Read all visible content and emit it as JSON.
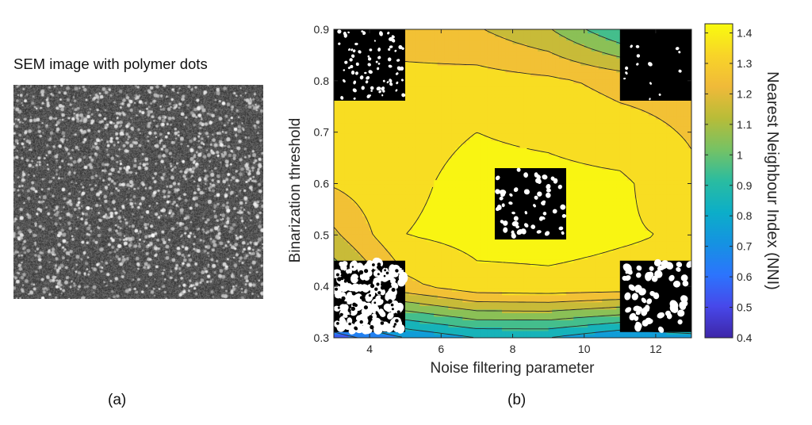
{
  "panel_a": {
    "title": "SEM image with polymer dots",
    "label": "(a)",
    "image_icon": "sem-micrograph-noise-dots"
  },
  "panel_b": {
    "label": "(b)"
  },
  "chart_data": {
    "type": "heatmap",
    "subtype": "filled-contour",
    "title": "",
    "xlabel": "Noise filtering parameter",
    "ylabel": "Binarization threshold",
    "colorbar_label": "Nearest Neighbour Index (NNI)",
    "xlim": [
      3,
      13
    ],
    "ylim": [
      0.3,
      0.9
    ],
    "clim": [
      0.4,
      1.43
    ],
    "x_ticks": [
      4,
      6,
      8,
      10,
      12
    ],
    "y_ticks": [
      0.3,
      0.4,
      0.5,
      0.6,
      0.7,
      0.8,
      0.9
    ],
    "colorbar_ticks": [
      0.4,
      0.5,
      0.6,
      0.7,
      0.8,
      0.9,
      1,
      1.1,
      1.2,
      1.3,
      1.4
    ],
    "colormap": "parula",
    "grid": false,
    "x": [
      3,
      5,
      7,
      9,
      11,
      13
    ],
    "y": [
      0.3,
      0.4,
      0.5,
      0.6,
      0.7,
      0.8,
      0.9
    ],
    "z": [
      [
        0.55,
        0.7,
        0.8,
        0.8,
        0.7,
        0.75
      ],
      [
        1.0,
        1.27,
        1.37,
        1.38,
        1.37,
        1.37
      ],
      [
        1.18,
        1.4,
        1.43,
        1.43,
        1.41,
        1.39
      ],
      [
        1.31,
        1.38,
        1.43,
        1.43,
        1.42,
        1.32
      ],
      [
        1.35,
        1.37,
        1.4,
        1.38,
        1.34,
        1.29
      ],
      [
        1.28,
        1.33,
        1.34,
        1.32,
        1.27,
        1.26
      ],
      [
        1.2,
        1.25,
        1.21,
        1.11,
        0.9,
        1.06
      ]
    ],
    "insets": [
      {
        "name": "inset-top-left",
        "at_x": 3,
        "at_y": 0.9,
        "icon": "binarized-sparse-dots"
      },
      {
        "name": "inset-top-right",
        "at_x": 11,
        "at_y": 0.9,
        "icon": "binarized-few-dots"
      },
      {
        "name": "inset-center",
        "at_x": 7.5,
        "at_y": 0.63,
        "icon": "binarized-round-dots"
      },
      {
        "name": "inset-bottom-left",
        "at_x": 3,
        "at_y": 0.45,
        "icon": "binarized-dense-connected"
      },
      {
        "name": "inset-bottom-right",
        "at_x": 11,
        "at_y": 0.45,
        "icon": "binarized-large-dots"
      }
    ]
  }
}
